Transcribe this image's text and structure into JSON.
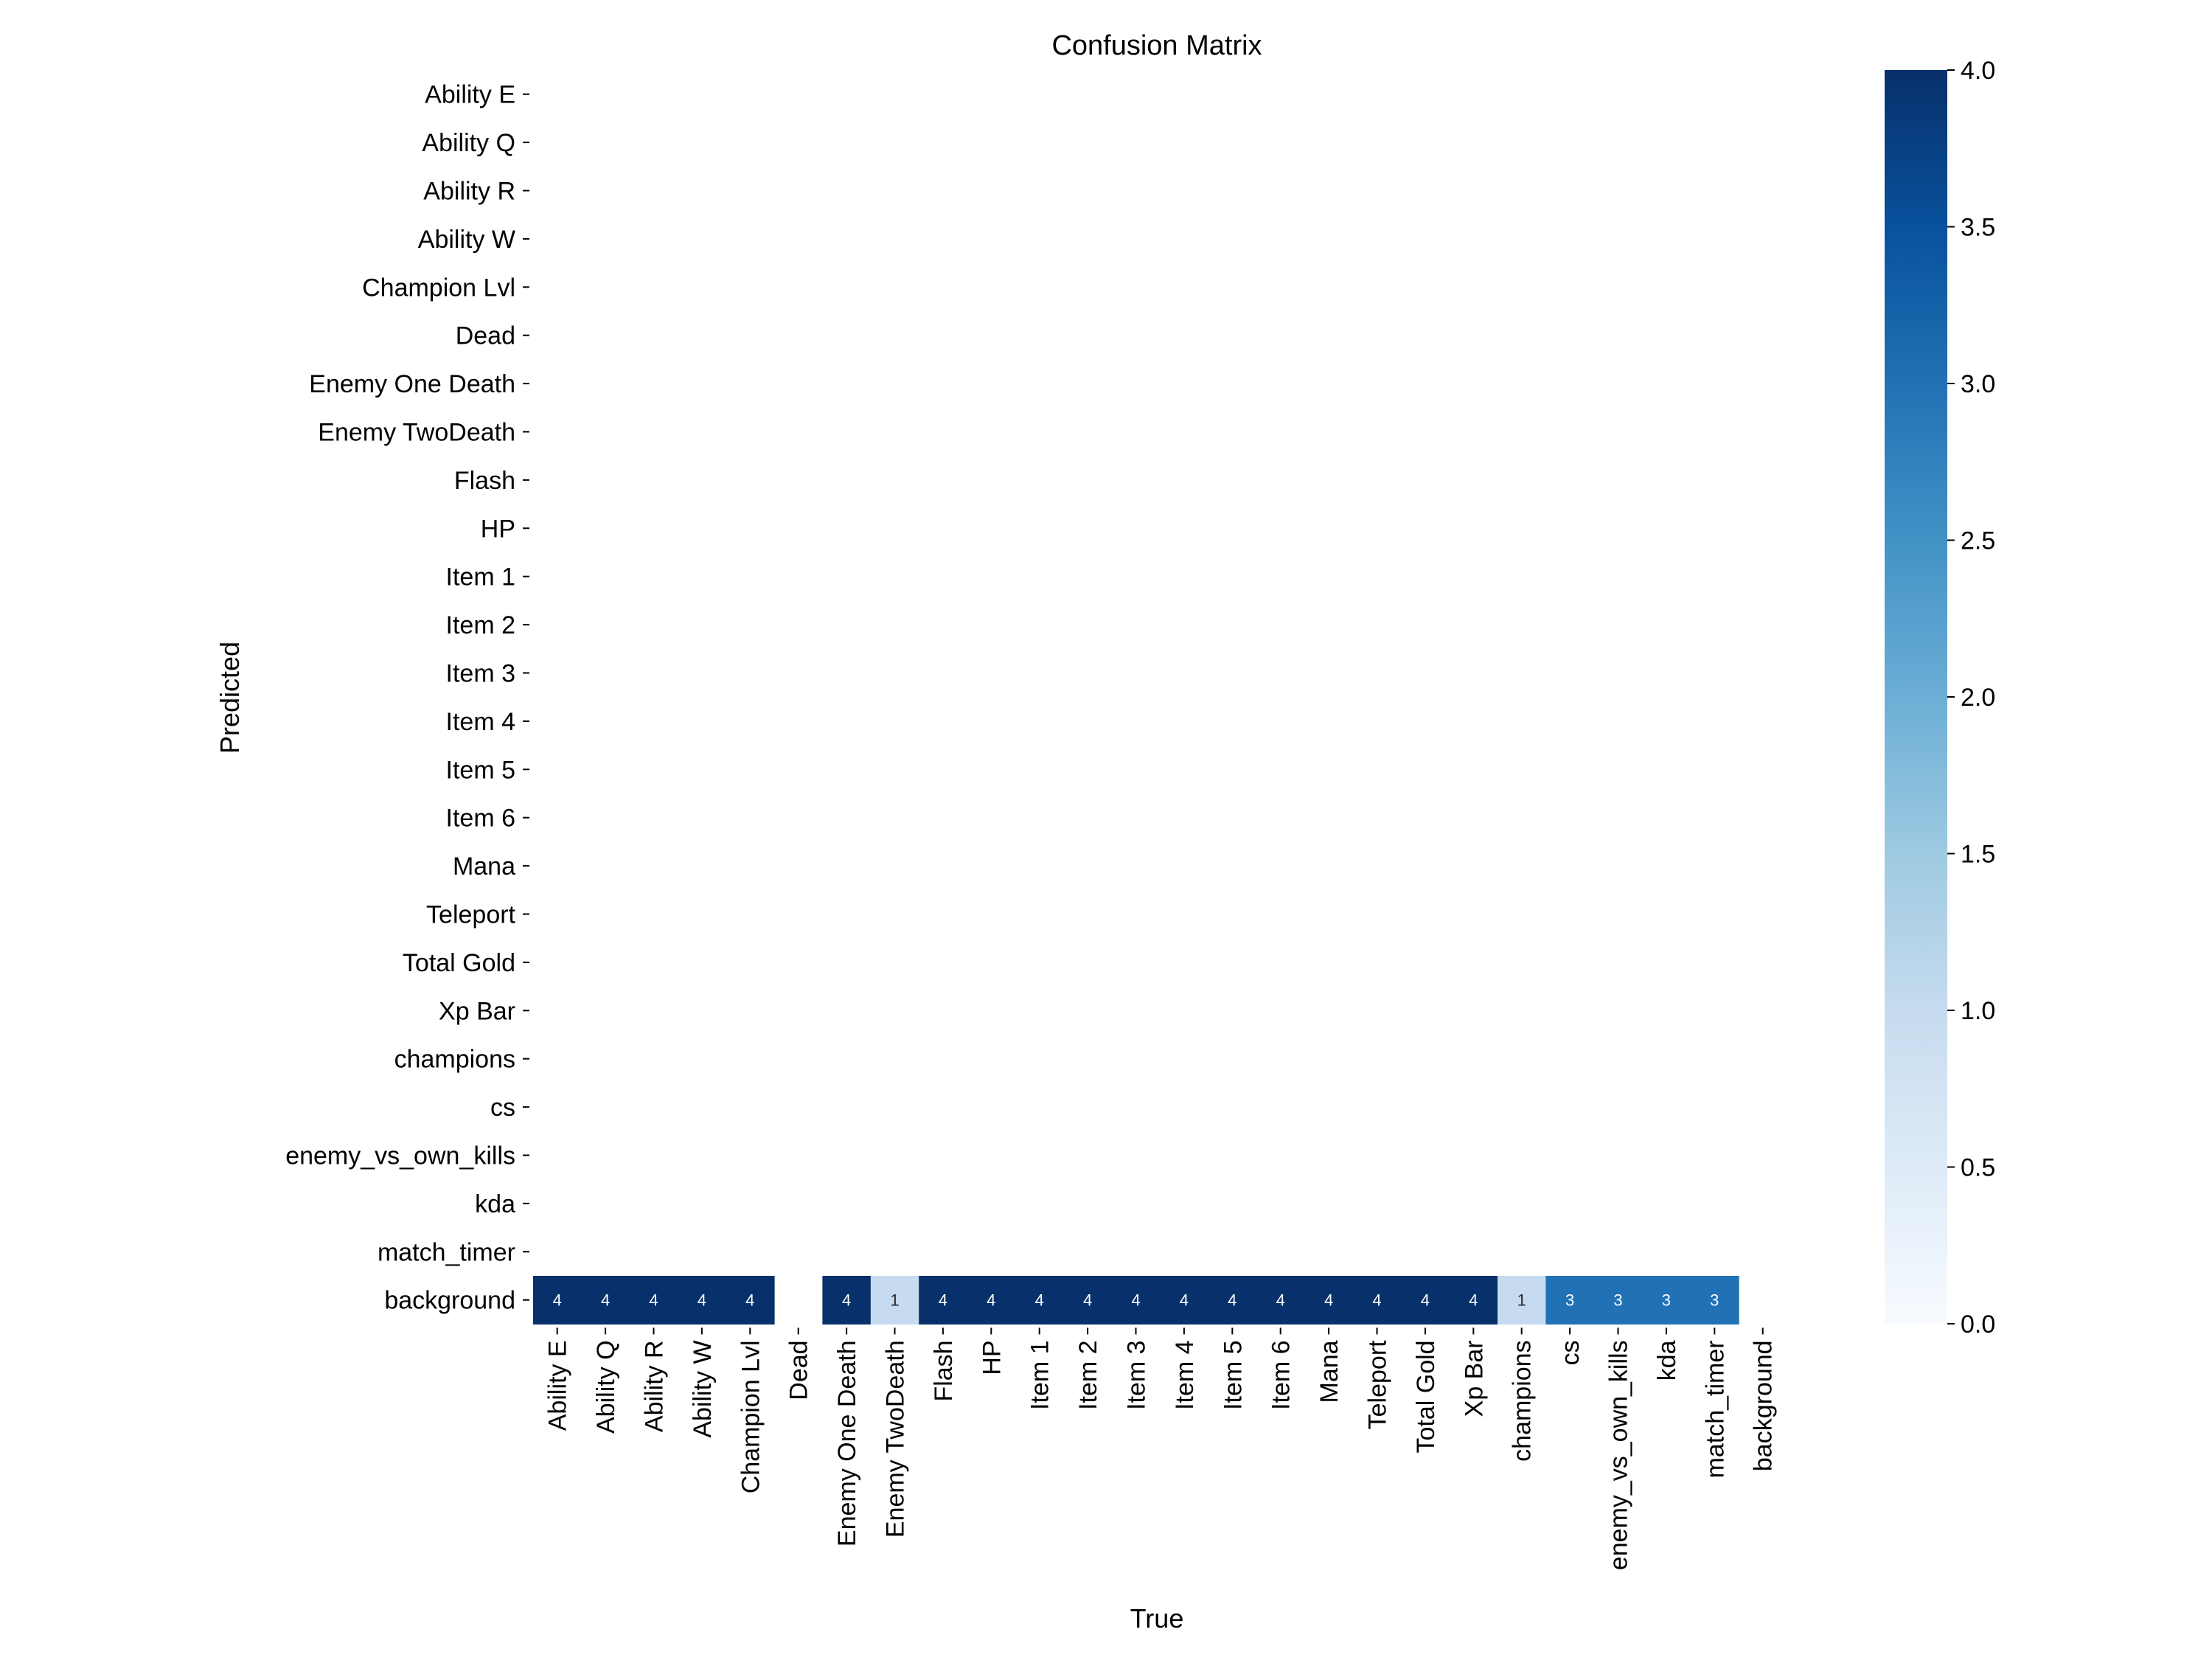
{
  "chart_data": {
    "type": "heatmap",
    "title": "Confusion Matrix",
    "xlabel": "True",
    "ylabel": "Predicted",
    "labels": [
      "Ability E",
      "Ability Q",
      "Ability R",
      "Ability W",
      "Champion Lvl",
      "Dead",
      "Enemy One Death",
      "Enemy TwoDeath",
      "Flash",
      "HP",
      "Item 1",
      "Item 2",
      "Item 3",
      "Item 4",
      "Item 5",
      "Item 6",
      "Mana",
      "Teleport",
      "Total Gold",
      "Xp Bar",
      "champions",
      "cs",
      "enemy_vs_own_kills",
      "kda",
      "match_timer",
      "background"
    ],
    "nonzero_cells": [
      {
        "predicted": "background",
        "true": "Ability E",
        "value": 4
      },
      {
        "predicted": "background",
        "true": "Ability Q",
        "value": 4
      },
      {
        "predicted": "background",
        "true": "Ability R",
        "value": 4
      },
      {
        "predicted": "background",
        "true": "Ability W",
        "value": 4
      },
      {
        "predicted": "background",
        "true": "Champion Lvl",
        "value": 4
      },
      {
        "predicted": "background",
        "true": "Enemy One Death",
        "value": 4
      },
      {
        "predicted": "background",
        "true": "Enemy TwoDeath",
        "value": 1
      },
      {
        "predicted": "background",
        "true": "Flash",
        "value": 4
      },
      {
        "predicted": "background",
        "true": "HP",
        "value": 4
      },
      {
        "predicted": "background",
        "true": "Item 1",
        "value": 4
      },
      {
        "predicted": "background",
        "true": "Item 2",
        "value": 4
      },
      {
        "predicted": "background",
        "true": "Item 3",
        "value": 4
      },
      {
        "predicted": "background",
        "true": "Item 4",
        "value": 4
      },
      {
        "predicted": "background",
        "true": "Item 5",
        "value": 4
      },
      {
        "predicted": "background",
        "true": "Item 6",
        "value": 4
      },
      {
        "predicted": "background",
        "true": "Mana",
        "value": 4
      },
      {
        "predicted": "background",
        "true": "Teleport",
        "value": 4
      },
      {
        "predicted": "background",
        "true": "Total Gold",
        "value": 4
      },
      {
        "predicted": "background",
        "true": "Xp Bar",
        "value": 4
      },
      {
        "predicted": "background",
        "true": "champions",
        "value": 1
      },
      {
        "predicted": "background",
        "true": "cs",
        "value": 3
      },
      {
        "predicted": "background",
        "true": "enemy_vs_own_kills",
        "value": 3
      },
      {
        "predicted": "background",
        "true": "kda",
        "value": 3
      },
      {
        "predicted": "background",
        "true": "match_timer",
        "value": 3
      }
    ],
    "colorbar": {
      "range": [
        0,
        4
      ],
      "ticks": [
        "0.0",
        "0.5",
        "1.0",
        "1.5",
        "2.0",
        "2.5",
        "3.0",
        "3.5",
        "4.0"
      ],
      "colormap": [
        "#f7fbff",
        "#deebf7",
        "#c6dbef",
        "#9ecae1",
        "#6baed6",
        "#4292c6",
        "#2171b5",
        "#08519c",
        "#08306b"
      ]
    },
    "zero_cells_blank": true
  }
}
